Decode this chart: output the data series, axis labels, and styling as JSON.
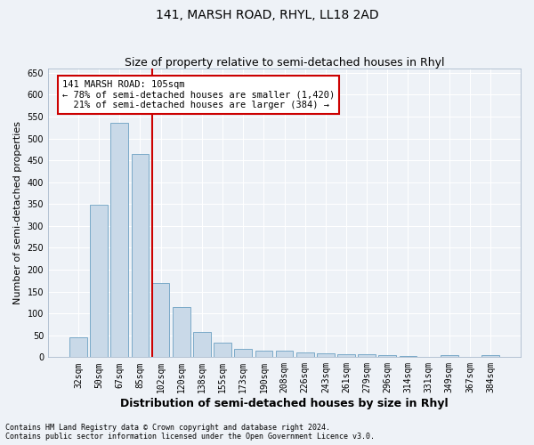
{
  "title": "141, MARSH ROAD, RHYL, LL18 2AD",
  "subtitle": "Size of property relative to semi-detached houses in Rhyl",
  "xlabel": "Distribution of semi-detached houses by size in Rhyl",
  "ylabel": "Number of semi-detached properties",
  "categories": [
    "32sqm",
    "50sqm",
    "67sqm",
    "85sqm",
    "102sqm",
    "120sqm",
    "138sqm",
    "155sqm",
    "173sqm",
    "190sqm",
    "208sqm",
    "226sqm",
    "243sqm",
    "261sqm",
    "279sqm",
    "296sqm",
    "314sqm",
    "331sqm",
    "349sqm",
    "367sqm",
    "384sqm"
  ],
  "values": [
    45,
    348,
    535,
    465,
    170,
    115,
    58,
    33,
    18,
    15,
    15,
    10,
    8,
    7,
    6,
    5,
    3,
    0,
    5,
    0,
    5
  ],
  "bar_color": "#c9d9e8",
  "bar_edge_color": "#7aaac8",
  "property_label": "141 MARSH ROAD: 105sqm",
  "pct_smaller": 78,
  "num_smaller": 1420,
  "pct_larger": 21,
  "num_larger": 384,
  "annotation_box_color": "#ffffff",
  "annotation_box_edge": "#cc0000",
  "vline_color": "#cc0000",
  "vline_x_index": 4,
  "ylim": [
    0,
    660
  ],
  "yticks": [
    0,
    50,
    100,
    150,
    200,
    250,
    300,
    350,
    400,
    450,
    500,
    550,
    600,
    650
  ],
  "footer_line1": "Contains HM Land Registry data © Crown copyright and database right 2024.",
  "footer_line2": "Contains public sector information licensed under the Open Government Licence v3.0.",
  "bg_color": "#eef2f7",
  "grid_color": "#ffffff",
  "title_fontsize": 10,
  "subtitle_fontsize": 9,
  "ylabel_fontsize": 8,
  "xlabel_fontsize": 9,
  "tick_fontsize": 7,
  "ann_fontsize": 7.5
}
